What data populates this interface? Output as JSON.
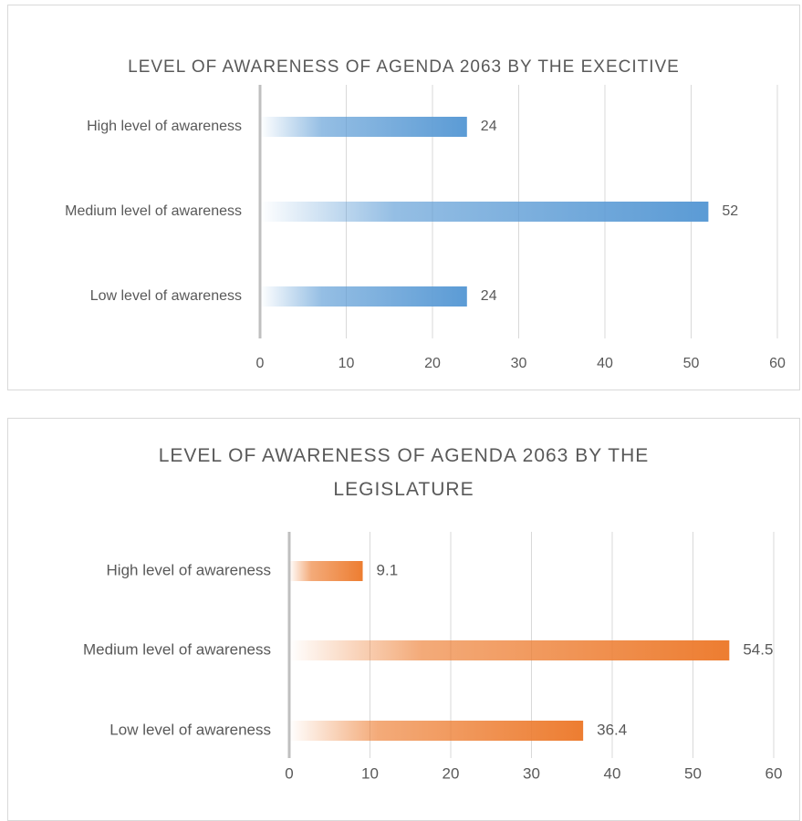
{
  "chart_data": [
    {
      "type": "bar",
      "orientation": "horizontal",
      "title": "LEVEL OF AWARENESS OF AGENDA 2063 BY THE EXECITIVE",
      "categories": [
        "High level of awareness",
        "Medium level of awareness",
        "Low level of awareness"
      ],
      "values": [
        24,
        52,
        24
      ],
      "color": "#5b9bd5",
      "xlim": [
        0,
        60
      ],
      "xticks": [
        0,
        10,
        20,
        30,
        40,
        50,
        60
      ],
      "grid": true
    },
    {
      "type": "bar",
      "orientation": "horizontal",
      "title": "LEVEL OF AWARENESS OF AGENDA 2063 BY THE LEGISLATURE",
      "categories": [
        "High level of awareness",
        "Medium level of awareness",
        "Low level of awareness"
      ],
      "values": [
        9.1,
        54.5,
        36.4
      ],
      "color": "#ed7d31",
      "xlim": [
        0,
        60
      ],
      "xticks": [
        0,
        10,
        20,
        30,
        40,
        50,
        60
      ],
      "grid": true
    }
  ]
}
